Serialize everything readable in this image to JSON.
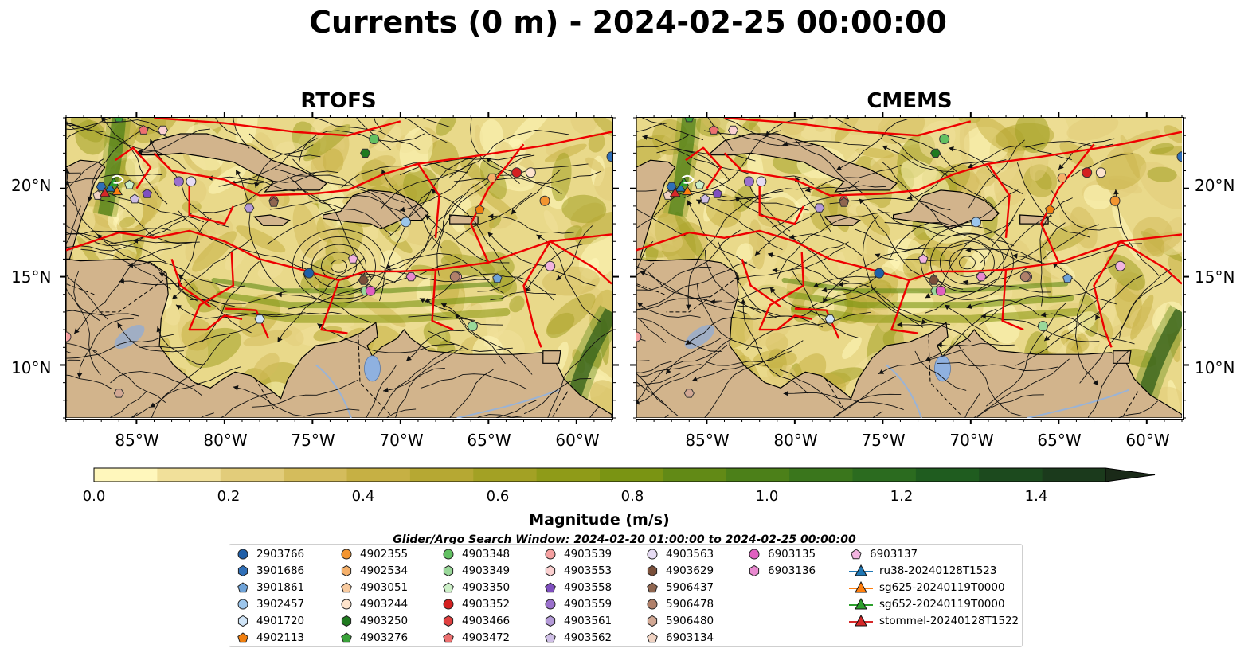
{
  "title": "Currents (0 m) - 2024-02-25 00:00:00",
  "panels": [
    {
      "title": "RTOFS"
    },
    {
      "title": "CMEMS"
    }
  ],
  "axes": {
    "x_ticks": [
      "85°W",
      "80°W",
      "75°W",
      "70°W",
      "65°W",
      "60°W"
    ],
    "y_ticks": [
      "20°N",
      "15°N",
      "10°N"
    ],
    "lon_range": [
      -89,
      -58
    ],
    "lat_range": [
      7,
      24
    ]
  },
  "colorbar": {
    "label": "Magnitude (m/s)",
    "ticks": [
      "0.0",
      "0.2",
      "0.4",
      "0.6",
      "0.8",
      "1.0",
      "1.2",
      "1.4"
    ],
    "range": [
      0.0,
      1.5
    ],
    "extend": "max",
    "colors": [
      "#fff7bc",
      "#f1e09a",
      "#e2cc7a",
      "#d4bc5c",
      "#c6b044",
      "#b6a833",
      "#a3a124",
      "#8f9b18",
      "#7a9413",
      "#628a16",
      "#4c8019",
      "#3a761c",
      "#2b6b1f",
      "#1f5c1f",
      "#1c4a1e",
      "#1b3a1c",
      "#1a2a18"
    ]
  },
  "legend": {
    "title": "Glider/Argo Search Window: 2024-02-20 01:00:00 to 2024-02-25 00:00:00",
    "items": [
      {
        "label": "2903766",
        "marker": "circle",
        "color": "#1f5fa8"
      },
      {
        "label": "3901686",
        "marker": "hexagon",
        "color": "#2f6fb8"
      },
      {
        "label": "3901861",
        "marker": "pentagon",
        "color": "#6fa3d8"
      },
      {
        "label": "3902457",
        "marker": "circle",
        "color": "#9cc6ec"
      },
      {
        "label": "4901720",
        "marker": "hexagon",
        "color": "#cfe4f7"
      },
      {
        "label": "4902113",
        "marker": "pentagon",
        "color": "#f07f10"
      },
      {
        "label": "4902355",
        "marker": "circle",
        "color": "#f39530"
      },
      {
        "label": "4902534",
        "marker": "hexagon",
        "color": "#f5b06a"
      },
      {
        "label": "4903051",
        "marker": "pentagon",
        "color": "#f8cba0"
      },
      {
        "label": "4903244",
        "marker": "circle",
        "color": "#fde3cc"
      },
      {
        "label": "4903250",
        "marker": "hexagon",
        "color": "#1f7a1f"
      },
      {
        "label": "4903276",
        "marker": "pentagon",
        "color": "#3aa23a"
      },
      {
        "label": "4903348",
        "marker": "circle",
        "color": "#62c062"
      },
      {
        "label": "4903349",
        "marker": "hexagon",
        "color": "#9ad89a"
      },
      {
        "label": "4903350",
        "marker": "pentagon",
        "color": "#cdf0c8"
      },
      {
        "label": "4903352",
        "marker": "circle",
        "color": "#d42020"
      },
      {
        "label": "4903466",
        "marker": "hexagon",
        "color": "#e04040"
      },
      {
        "label": "4903472",
        "marker": "pentagon",
        "color": "#ec7070"
      },
      {
        "label": "4903539",
        "marker": "circle",
        "color": "#f5a0a0"
      },
      {
        "label": "4903553",
        "marker": "hexagon",
        "color": "#fbd0d0"
      },
      {
        "label": "4903558",
        "marker": "pentagon",
        "color": "#7f4fbf"
      },
      {
        "label": "4903559",
        "marker": "circle",
        "color": "#9a70cc"
      },
      {
        "label": "4903561",
        "marker": "hexagon",
        "color": "#b49ad8"
      },
      {
        "label": "4903562",
        "marker": "pentagon",
        "color": "#cfbfe6"
      },
      {
        "label": "4903563",
        "marker": "circle",
        "color": "#e6dbf3"
      },
      {
        "label": "4903629",
        "marker": "hexagon",
        "color": "#7a4f3a"
      },
      {
        "label": "5906437",
        "marker": "pentagon",
        "color": "#8f6650"
      },
      {
        "label": "5906478",
        "marker": "circle",
        "color": "#b0806a"
      },
      {
        "label": "5906480",
        "marker": "hexagon",
        "color": "#d2a894"
      },
      {
        "label": "6903134",
        "marker": "pentagon",
        "color": "#efd2c2"
      },
      {
        "label": "6903135",
        "marker": "circle",
        "color": "#e060c0"
      },
      {
        "label": "6903136",
        "marker": "hexagon",
        "color": "#e889cf"
      },
      {
        "label": "6903137",
        "marker": "pentagon",
        "color": "#f2b4e0"
      },
      {
        "label": "ru38-20240128T1523",
        "marker": "triangle-line",
        "color": "#1f77b4"
      },
      {
        "label": "sg625-20240119T0000",
        "marker": "triangle-line",
        "color": "#ff7f0e"
      },
      {
        "label": "sg652-20240119T0000",
        "marker": "triangle-line",
        "color": "#2ca02c"
      },
      {
        "label": "stommel-20240128T1522",
        "marker": "triangle-line",
        "color": "#d62728"
      }
    ]
  },
  "floats": [
    {
      "id": "2903766",
      "lon": -75.2,
      "lat": 15.2
    },
    {
      "id": "3901686",
      "lon": -87.0,
      "lat": 20.1
    },
    {
      "id": "3901861",
      "lon": -64.5,
      "lat": 14.9
    },
    {
      "id": "3902457",
      "lon": -69.7,
      "lat": 18.1
    },
    {
      "id": "4901720",
      "lon": -78.0,
      "lat": 12.6
    },
    {
      "id": "4902113",
      "lon": -65.5,
      "lat": 18.8
    },
    {
      "id": "4902355",
      "lon": -61.8,
      "lat": 19.3
    },
    {
      "id": "4902534",
      "lon": -64.8,
      "lat": 20.6
    },
    {
      "id": "4903051",
      "lon": -71.8,
      "lat": 14.3
    },
    {
      "id": "4903244",
      "lon": -62.6,
      "lat": 20.9
    },
    {
      "id": "4903250",
      "lon": -72.0,
      "lat": 22.0
    },
    {
      "id": "4903276",
      "lon": -86.0,
      "lat": 24.0
    },
    {
      "id": "4903348",
      "lon": -71.5,
      "lat": 22.8
    },
    {
      "id": "4903349",
      "lon": -72.0,
      "lat": 14.2
    },
    {
      "id": "4903350",
      "lon": -85.4,
      "lat": 20.2
    },
    {
      "id": "4903352",
      "lon": -63.4,
      "lat": 20.9
    },
    {
      "id": "4903466",
      "lon": -77.2,
      "lat": 19.3
    },
    {
      "id": "4903472",
      "lon": -84.6,
      "lat": 23.3
    },
    {
      "id": "4903539",
      "lon": -66.8,
      "lat": 15.0
    },
    {
      "id": "4903553",
      "lon": -83.5,
      "lat": 23.3
    },
    {
      "id": "4903558",
      "lon": -84.4,
      "lat": 19.7
    },
    {
      "id": "4903559",
      "lon": -82.6,
      "lat": 20.4
    },
    {
      "id": "4903561",
      "lon": -78.6,
      "lat": 18.9
    },
    {
      "id": "4903562",
      "lon": -85.1,
      "lat": 19.4
    },
    {
      "id": "4903563",
      "lon": -81.9,
      "lat": 20.4
    },
    {
      "id": "4903629",
      "lon": -72.1,
      "lat": 14.8
    },
    {
      "id": "5906437",
      "lon": -77.2,
      "lat": 19.2
    },
    {
      "id": "5906478",
      "lon": -66.9,
      "lat": 15.0
    },
    {
      "id": "5906480",
      "lon": -86.0,
      "lat": 8.4
    },
    {
      "id": "6903134",
      "lon": -87.2,
      "lat": 19.6
    },
    {
      "id": "6903135",
      "lon": -71.7,
      "lat": 14.2
    },
    {
      "id": "6903136",
      "lon": -69.4,
      "lat": 15.0
    },
    {
      "id": "6903137",
      "lon": -72.7,
      "lat": 16.0
    }
  ],
  "gliders": [
    {
      "id": "ru38-20240128T1523",
      "lon": -86.5,
      "lat": 20.0
    },
    {
      "id": "sg625-20240119T0000",
      "lon": -86.1,
      "lat": 19.8
    },
    {
      "id": "sg652-20240119T0000",
      "lon": -86.3,
      "lat": 20.3
    },
    {
      "id": "stommel-20240128T1522",
      "lon": -86.8,
      "lat": 19.7
    }
  ],
  "extra_floats": [
    {
      "lon": -58.0,
      "lat": 21.8,
      "color": "#2f6fb8"
    },
    {
      "lon": -61.5,
      "lat": 15.6,
      "color": "#f2b4e0"
    },
    {
      "lon": -65.9,
      "lat": 12.2,
      "color": "#9ad89a"
    },
    {
      "lon": -89.0,
      "lat": 11.6,
      "color": "#f5a0a0"
    }
  ]
}
